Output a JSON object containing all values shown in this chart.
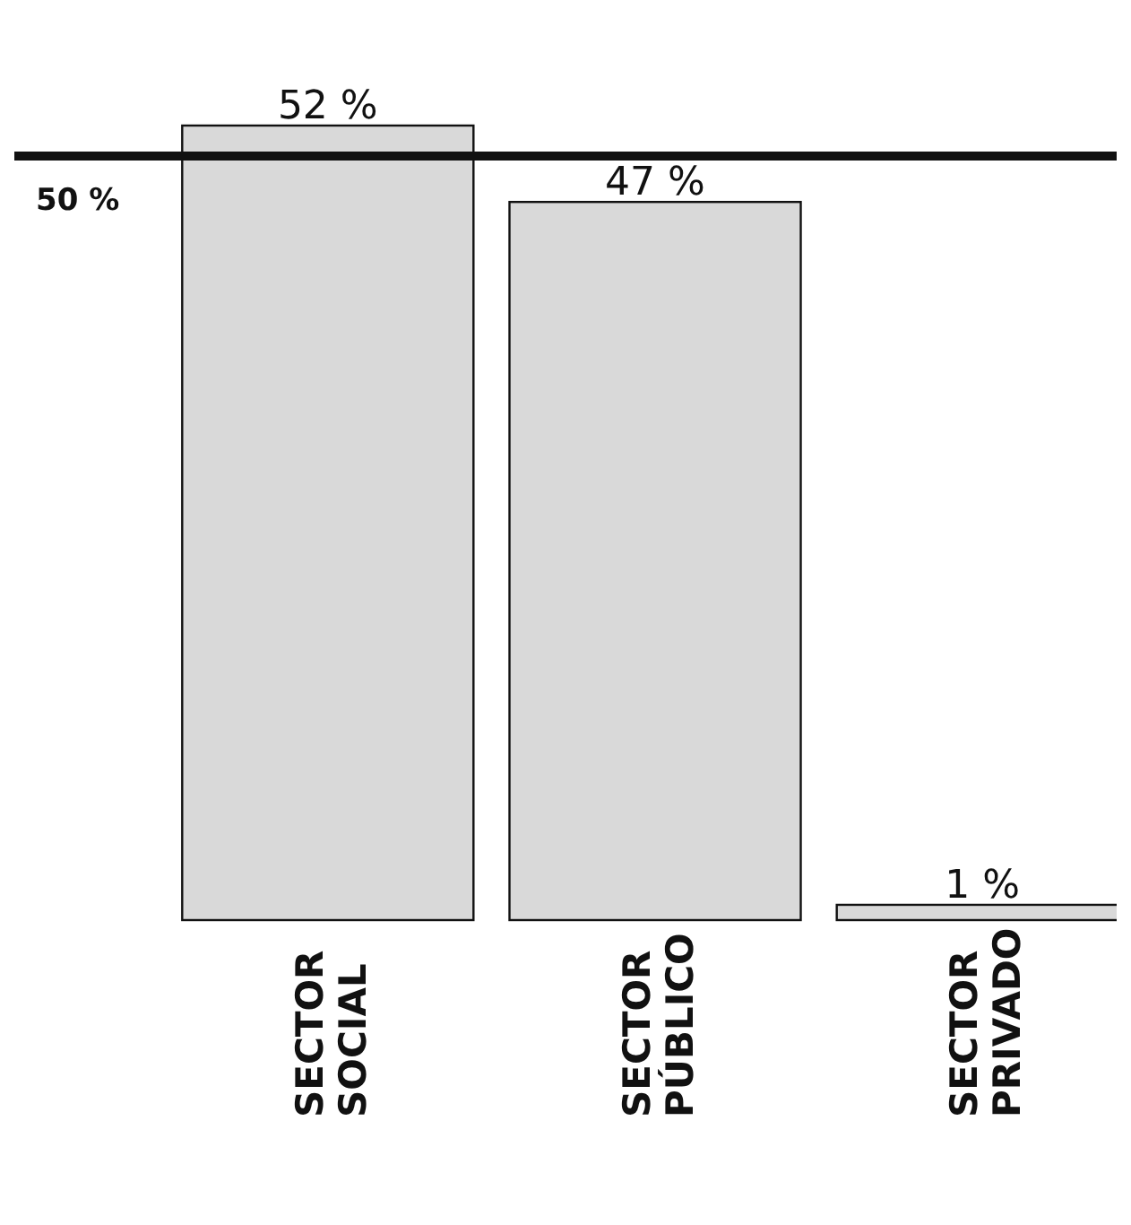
{
  "chart_data": {
    "type": "bar",
    "categories": [
      "SECTOR SOCIAL",
      "SECTOR PÚBLICO",
      "SECTOR PRIVADO"
    ],
    "values": [
      52,
      47,
      1
    ],
    "color": "#d9d9d9",
    "value_labels": [
      "52 %",
      "47 %",
      "1 %"
    ],
    "ref_lines": [
      {
        "axis": "y",
        "value": 50,
        "label": "50 %",
        "color": "#111111"
      }
    ]
  }
}
